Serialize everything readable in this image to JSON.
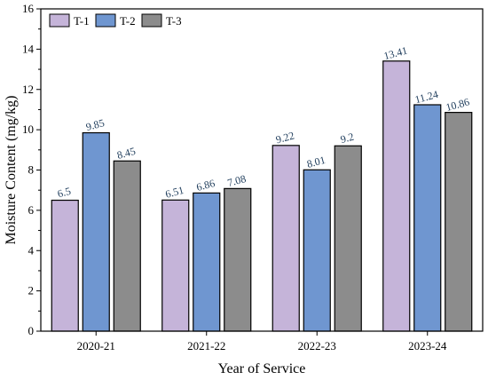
{
  "chart_data": {
    "type": "bar",
    "xlabel": "Year of Service",
    "ylabel": "Moisture Content (mg/kg)",
    "categories": [
      "2020-21",
      "2021-22",
      "2022-23",
      "2023-24"
    ],
    "ylim": [
      0,
      16
    ],
    "yticks": [
      0,
      2,
      4,
      6,
      8,
      10,
      12,
      14,
      16
    ],
    "grid": false,
    "legend_position": "top-left",
    "series": [
      {
        "name": "T-1",
        "color": "#c5b4d9",
        "values": [
          6.5,
          6.51,
          9.22,
          13.41
        ],
        "labels": [
          "6.5",
          "6.51",
          "9.22",
          "13.41"
        ]
      },
      {
        "name": "T-2",
        "color": "#6f96d0",
        "values": [
          9.85,
          6.86,
          8.01,
          11.24
        ],
        "labels": [
          "9.85",
          "6.86",
          "8.01",
          "11.24"
        ]
      },
      {
        "name": "T-3",
        "color": "#8c8c8c",
        "values": [
          8.45,
          7.08,
          9.2,
          10.86
        ],
        "labels": [
          "8.45",
          "7.08",
          "9.2",
          "10.86"
        ]
      }
    ],
    "label_color": "#1f3d5c"
  }
}
